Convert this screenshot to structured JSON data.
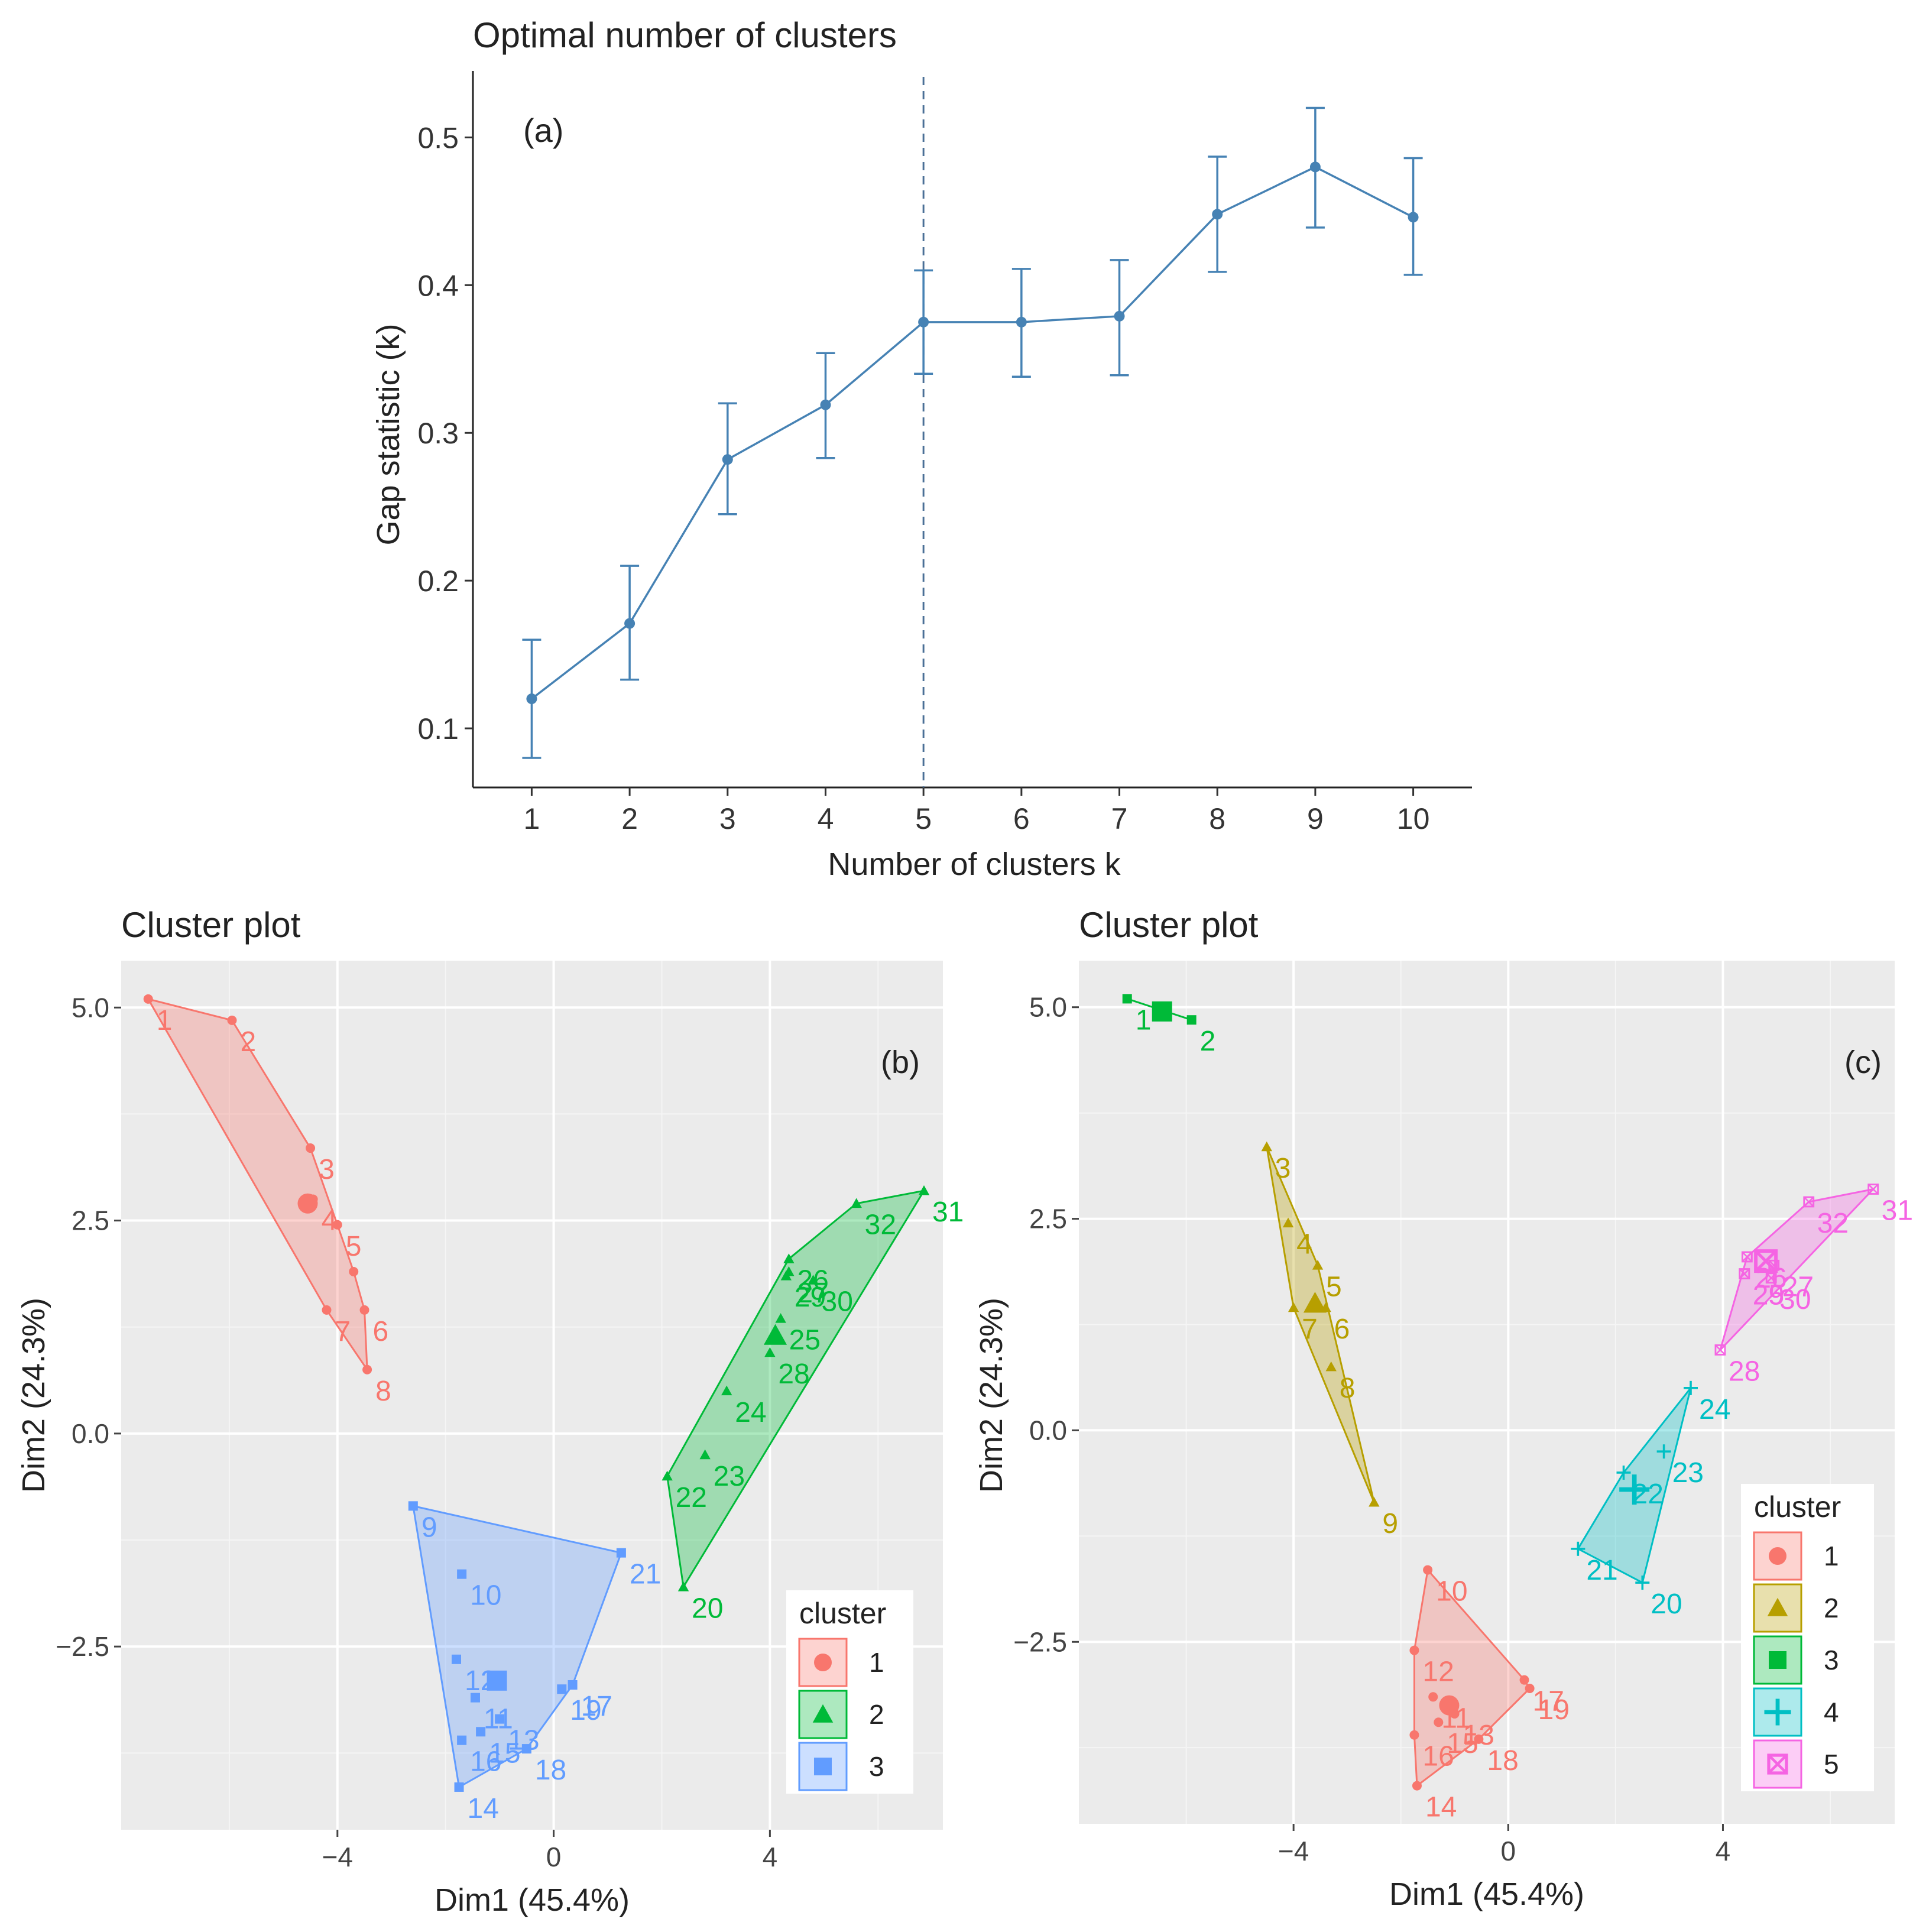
{
  "chart_data": [
    {
      "panel": "(a)",
      "type": "line",
      "title": "Optimal number of clusters",
      "xlabel": "Number of clusters k",
      "ylabel": "Gap statistic (k)",
      "x": [
        1,
        2,
        3,
        4,
        5,
        6,
        7,
        8,
        9,
        10
      ],
      "values": [
        0.12,
        0.171,
        0.282,
        0.319,
        0.375,
        0.375,
        0.379,
        0.448,
        0.48,
        0.446
      ],
      "error_low": [
        0.08,
        0.133,
        0.245,
        0.283,
        0.34,
        0.338,
        0.339,
        0.409,
        0.439,
        0.407
      ],
      "error_high": [
        0.16,
        0.21,
        0.32,
        0.354,
        0.41,
        0.411,
        0.417,
        0.487,
        0.52,
        0.486
      ],
      "optimal_k": 5,
      "xlim": [
        0.4,
        10.6
      ],
      "ylim": [
        0.06,
        0.545
      ],
      "yticks": [
        0.1,
        0.2,
        0.3,
        0.4,
        0.5
      ],
      "ytick_labels": [
        "0.1",
        "0.2",
        "0.3",
        "0.4",
        "0.5"
      ],
      "xtick_labels": [
        "1",
        "2",
        "3",
        "4",
        "5",
        "6",
        "7",
        "8",
        "9",
        "10"
      ],
      "color": "#4682b4",
      "grid": false
    },
    {
      "panel": "(b)",
      "type": "scatter",
      "title": "Cluster plot",
      "xlabel": "Dim1 (45.4%)",
      "ylabel": "Dim2 (24.3%)",
      "xlim": [
        -8.0,
        7.2
      ],
      "ylim": [
        -4.65,
        5.55
      ],
      "xticks": [
        -4,
        0,
        4
      ],
      "xtick_labels": [
        "−4",
        "0",
        "4"
      ],
      "yticks": [
        -2.5,
        0,
        2.5,
        5
      ],
      "ytick_labels": [
        "−2.5",
        "0.0",
        "2.5",
        "5.0"
      ],
      "legend_title": "cluster",
      "legend_position": "bottom-right",
      "clusters": [
        {
          "id": "1",
          "color": "#f8766d",
          "shape": "circle",
          "center": [
            -4.55,
            2.7
          ],
          "points": [
            {
              "label": "1",
              "x": -7.5,
              "y": 5.1
            },
            {
              "label": "2",
              "x": -5.95,
              "y": 4.85
            },
            {
              "label": "3",
              "x": -4.5,
              "y": 3.35
            },
            {
              "label": "4",
              "x": -4.45,
              "y": 2.75
            },
            {
              "label": "5",
              "x": -4.0,
              "y": 2.45
            },
            {
              "label": "6",
              "x": -3.5,
              "y": 1.45
            },
            {
              "label": "7",
              "x": -4.2,
              "y": 1.45
            },
            {
              "label": "8",
              "x": -3.45,
              "y": 0.75
            },
            {
              "label": "",
              "x": -3.7,
              "y": 1.9
            }
          ]
        },
        {
          "id": "2",
          "color": "#00ba38",
          "shape": "triangle",
          "center": [
            4.1,
            1.15
          ],
          "points": [
            {
              "label": "20",
              "x": 2.4,
              "y": -1.8
            },
            {
              "label": "22",
              "x": 2.1,
              "y": -0.5
            },
            {
              "label": "23",
              "x": 2.8,
              "y": -0.25
            },
            {
              "label": "24",
              "x": 3.2,
              "y": 0.5
            },
            {
              "label": "25",
              "x": 4.2,
              "y": 1.35
            },
            {
              "label": "26",
              "x": 4.35,
              "y": 2.05
            },
            {
              "label": "27",
              "x": 4.35,
              "y": 1.9
            },
            {
              "label": "28",
              "x": 4.0,
              "y": 0.95
            },
            {
              "label": "29",
              "x": 4.3,
              "y": 1.85
            },
            {
              "label": "30",
              "x": 4.8,
              "y": 1.8
            },
            {
              "label": "31",
              "x": 6.85,
              "y": 2.85
            },
            {
              "label": "32",
              "x": 5.6,
              "y": 2.7
            }
          ]
        },
        {
          "id": "3",
          "color": "#619cff",
          "shape": "square",
          "center": [
            -1.05,
            -2.9
          ],
          "points": [
            {
              "label": "9",
              "x": -2.6,
              "y": -0.85
            },
            {
              "label": "10",
              "x": -1.7,
              "y": -1.65
            },
            {
              "label": "11",
              "x": -1.45,
              "y": -3.1
            },
            {
              "label": "12",
              "x": -1.8,
              "y": -2.65
            },
            {
              "label": "13",
              "x": -1.0,
              "y": -3.35
            },
            {
              "label": "14",
              "x": -1.75,
              "y": -4.15
            },
            {
              "label": "15",
              "x": -1.35,
              "y": -3.5
            },
            {
              "label": "16",
              "x": -1.7,
              "y": -3.6
            },
            {
              "label": "17",
              "x": 0.35,
              "y": -2.95
            },
            {
              "label": "18",
              "x": -0.5,
              "y": -3.7
            },
            {
              "label": "19",
              "x": 0.15,
              "y": -3.0
            },
            {
              "label": "21",
              "x": 1.25,
              "y": -1.4
            }
          ]
        }
      ]
    },
    {
      "panel": "(c)",
      "type": "scatter",
      "title": "Cluster plot",
      "xlabel": "Dim1 (45.4%)",
      "ylabel": "Dim2 (24.3%)",
      "xlim": [
        -8.0,
        7.2
      ],
      "ylim": [
        -4.65,
        5.55
      ],
      "xticks": [
        -4,
        0,
        4
      ],
      "xtick_labels": [
        "−4",
        "0",
        "4"
      ],
      "yticks": [
        -2.5,
        0,
        2.5,
        5
      ],
      "ytick_labels": [
        "−2.5",
        "0.0",
        "2.5",
        "5.0"
      ],
      "legend_title": "cluster",
      "legend_position": "bottom-right",
      "clusters": [
        {
          "id": "1",
          "color": "#f8766d",
          "shape": "circle",
          "center": [
            -1.1,
            -3.25
          ],
          "points": [
            {
              "label": "10",
              "x": -1.5,
              "y": -1.65
            },
            {
              "label": "11",
              "x": -1.4,
              "y": -3.15
            },
            {
              "label": "12",
              "x": -1.75,
              "y": -2.6
            },
            {
              "label": "13",
              "x": -1.0,
              "y": -3.35
            },
            {
              "label": "14",
              "x": -1.7,
              "y": -4.2
            },
            {
              "label": "15",
              "x": -1.3,
              "y": -3.45
            },
            {
              "label": "16",
              "x": -1.75,
              "y": -3.6
            },
            {
              "label": "17",
              "x": 0.3,
              "y": -2.95
            },
            {
              "label": "18",
              "x": -0.55,
              "y": -3.65
            },
            {
              "label": "19",
              "x": 0.4,
              "y": -3.05
            }
          ]
        },
        {
          "id": "2",
          "color": "#b79f00",
          "shape": "triangle",
          "center": [
            -3.6,
            1.5
          ],
          "points": [
            {
              "label": "3",
              "x": -4.5,
              "y": 3.35
            },
            {
              "label": "4",
              "x": -4.1,
              "y": 2.45
            },
            {
              "label": "5",
              "x": -3.55,
              "y": 1.95
            },
            {
              "label": "6",
              "x": -3.4,
              "y": 1.45
            },
            {
              "label": "7",
              "x": -4.0,
              "y": 1.45
            },
            {
              "label": "8",
              "x": -3.3,
              "y": 0.75
            },
            {
              "label": "9",
              "x": -2.5,
              "y": -0.85
            }
          ]
        },
        {
          "id": "3",
          "color": "#00ba38",
          "shape": "square",
          "center": [
            -6.45,
            4.95
          ],
          "points": [
            {
              "label": "1",
              "x": -7.1,
              "y": 5.1
            },
            {
              "label": "2",
              "x": -5.9,
              "y": 4.85
            }
          ]
        },
        {
          "id": "4",
          "color": "#00bfc4",
          "shape": "plus",
          "center": [
            2.35,
            -0.7
          ],
          "points": [
            {
              "label": "20",
              "x": 2.5,
              "y": -1.8
            },
            {
              "label": "21",
              "x": 1.3,
              "y": -1.4
            },
            {
              "label": "22",
              "x": 2.15,
              "y": -0.5
            },
            {
              "label": "23",
              "x": 2.9,
              "y": -0.25
            },
            {
              "label": "24",
              "x": 3.4,
              "y": 0.5
            }
          ]
        },
        {
          "id": "5",
          "color": "#f564e3",
          "shape": "boxx",
          "center": [
            4.8,
            2.0
          ],
          "points": [
            {
              "label": "25",
              "x": 4.4,
              "y": 1.85
            },
            {
              "label": "26",
              "x": 4.45,
              "y": 2.05
            },
            {
              "label": "27",
              "x": 4.95,
              "y": 1.95
            },
            {
              "label": "28",
              "x": 3.95,
              "y": 0.95
            },
            {
              "label": "29",
              "x": 4.4,
              "y": 1.85
            },
            {
              "label": "30",
              "x": 4.9,
              "y": 1.8
            },
            {
              "label": "31",
              "x": 6.8,
              "y": 2.85
            },
            {
              "label": "32",
              "x": 5.6,
              "y": 2.7
            }
          ]
        }
      ]
    }
  ]
}
